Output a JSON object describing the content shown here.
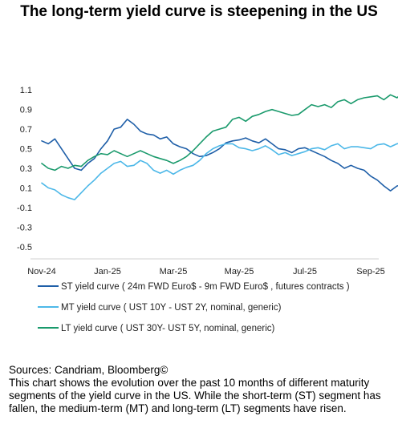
{
  "title": "The long-term yield curve is steepening in the US",
  "chart_data": {
    "type": "line",
    "title": "The long-term yield curve is steepening in the US",
    "x_tick_labels": [
      "Nov-24",
      "Jan-25",
      "Mar-25",
      "May-25",
      "Jul-25",
      "Sep-25"
    ],
    "y_ticks": [
      1.1,
      0.9,
      0.7,
      0.5,
      0.3,
      0.1,
      -0.1,
      -0.3,
      -0.5
    ],
    "ylim": [
      -0.6,
      1.2
    ],
    "grid": false,
    "legend_position": "bottom",
    "series": [
      {
        "name": "ST yield curve ( 24m FWD Euro$ - 9m FWD Euro$ , futures contracts )",
        "color": "#1f5fa8",
        "x": [
          0,
          0.1,
          0.2,
          0.3,
          0.4,
          0.5,
          0.6,
          0.7,
          0.8,
          0.9,
          1.0,
          1.1,
          1.2,
          1.3,
          1.4,
          1.5,
          1.6,
          1.7,
          1.8,
          1.9,
          2.0,
          2.1,
          2.2,
          2.3,
          2.4,
          2.5,
          2.6,
          2.7,
          2.8,
          2.9,
          3.0,
          3.1,
          3.2,
          3.3,
          3.4,
          3.5,
          3.6,
          3.7,
          3.8,
          3.9,
          4.0,
          4.1,
          4.2,
          4.3,
          4.4,
          4.5,
          4.6,
          4.7,
          4.8,
          4.9,
          5.0,
          5.1,
          5.2,
          5.3,
          5.4,
          5.5,
          5.6,
          5.7,
          5.8,
          5.9,
          6.0
        ],
        "values": [
          0.58,
          0.55,
          0.6,
          0.5,
          0.4,
          0.3,
          0.28,
          0.35,
          0.4,
          0.5,
          0.58,
          0.7,
          0.72,
          0.8,
          0.75,
          0.68,
          0.65,
          0.64,
          0.6,
          0.62,
          0.55,
          0.52,
          0.5,
          0.45,
          0.42,
          0.43,
          0.46,
          0.5,
          0.56,
          0.58,
          0.59,
          0.61,
          0.58,
          0.56,
          0.6,
          0.55,
          0.5,
          0.49,
          0.46,
          0.5,
          0.51,
          0.48,
          0.45,
          0.42,
          0.38,
          0.35,
          0.3,
          0.33,
          0.3,
          0.28,
          0.22,
          0.18,
          0.12,
          0.07,
          0.12,
          0.13,
          0.14,
          0.12,
          0.15,
          0.13,
          0.12
        ]
      },
      {
        "name": "MT yield curve ( UST 10Y - UST 2Y, nominal, generic)",
        "color": "#4db8e8",
        "x": [
          0,
          0.1,
          0.2,
          0.3,
          0.4,
          0.5,
          0.6,
          0.7,
          0.8,
          0.9,
          1.0,
          1.1,
          1.2,
          1.3,
          1.4,
          1.5,
          1.6,
          1.7,
          1.8,
          1.9,
          2.0,
          2.1,
          2.2,
          2.3,
          2.4,
          2.5,
          2.6,
          2.7,
          2.8,
          2.9,
          3.0,
          3.1,
          3.2,
          3.3,
          3.4,
          3.5,
          3.6,
          3.7,
          3.8,
          3.9,
          4.0,
          4.1,
          4.2,
          4.3,
          4.4,
          4.5,
          4.6,
          4.7,
          4.8,
          4.9,
          5.0,
          5.1,
          5.2,
          5.3,
          5.4,
          5.5,
          5.6,
          5.7,
          5.8,
          5.9,
          6.0
        ],
        "values": [
          0.15,
          0.1,
          0.08,
          0.03,
          0.0,
          -0.02,
          0.05,
          0.12,
          0.18,
          0.25,
          0.3,
          0.35,
          0.37,
          0.32,
          0.33,
          0.38,
          0.35,
          0.28,
          0.25,
          0.28,
          0.24,
          0.28,
          0.31,
          0.33,
          0.38,
          0.45,
          0.5,
          0.53,
          0.55,
          0.55,
          0.51,
          0.5,
          0.48,
          0.5,
          0.53,
          0.49,
          0.44,
          0.46,
          0.43,
          0.45,
          0.47,
          0.5,
          0.51,
          0.49,
          0.53,
          0.55,
          0.5,
          0.52,
          0.52,
          0.51,
          0.5,
          0.54,
          0.55,
          0.52,
          0.55,
          0.56,
          0.57,
          0.58,
          0.56,
          0.6,
          0.56
        ]
      },
      {
        "name": "LT yield curve ( UST 30Y- UST 5Y, nominal, generic)",
        "color": "#1a9a6c",
        "x": [
          0,
          0.1,
          0.2,
          0.3,
          0.4,
          0.5,
          0.6,
          0.7,
          0.8,
          0.9,
          1.0,
          1.1,
          1.2,
          1.3,
          1.4,
          1.5,
          1.6,
          1.7,
          1.8,
          1.9,
          2.0,
          2.1,
          2.2,
          2.3,
          2.4,
          2.5,
          2.6,
          2.7,
          2.8,
          2.9,
          3.0,
          3.1,
          3.2,
          3.3,
          3.4,
          3.5,
          3.6,
          3.7,
          3.8,
          3.9,
          4.0,
          4.1,
          4.2,
          4.3,
          4.4,
          4.5,
          4.6,
          4.7,
          4.8,
          4.9,
          5.0,
          5.1,
          5.2,
          5.3,
          5.4,
          5.5,
          5.6,
          5.7,
          5.8,
          5.9,
          6.0
        ],
        "values": [
          0.35,
          0.3,
          0.28,
          0.32,
          0.3,
          0.33,
          0.32,
          0.38,
          0.42,
          0.45,
          0.44,
          0.48,
          0.45,
          0.42,
          0.45,
          0.48,
          0.45,
          0.42,
          0.4,
          0.38,
          0.35,
          0.38,
          0.42,
          0.48,
          0.55,
          0.62,
          0.68,
          0.7,
          0.72,
          0.8,
          0.82,
          0.78,
          0.83,
          0.85,
          0.88,
          0.9,
          0.88,
          0.86,
          0.84,
          0.85,
          0.9,
          0.95,
          0.93,
          0.95,
          0.92,
          0.98,
          1.0,
          0.96,
          1.0,
          1.02,
          1.03,
          1.04,
          1.0,
          1.05,
          1.02,
          1.08,
          1.1,
          1.15,
          1.2,
          1.18,
          1.12
        ]
      }
    ]
  },
  "footer": {
    "source": "Sources: Candriam, Bloomberg©",
    "description": "This chart shows the evolution over the past 10 months of different maturity segments of the yield curve in the US. While the short-term (ST) segment has fallen, the medium-term (MT) and long-term (LT) segments have risen."
  }
}
